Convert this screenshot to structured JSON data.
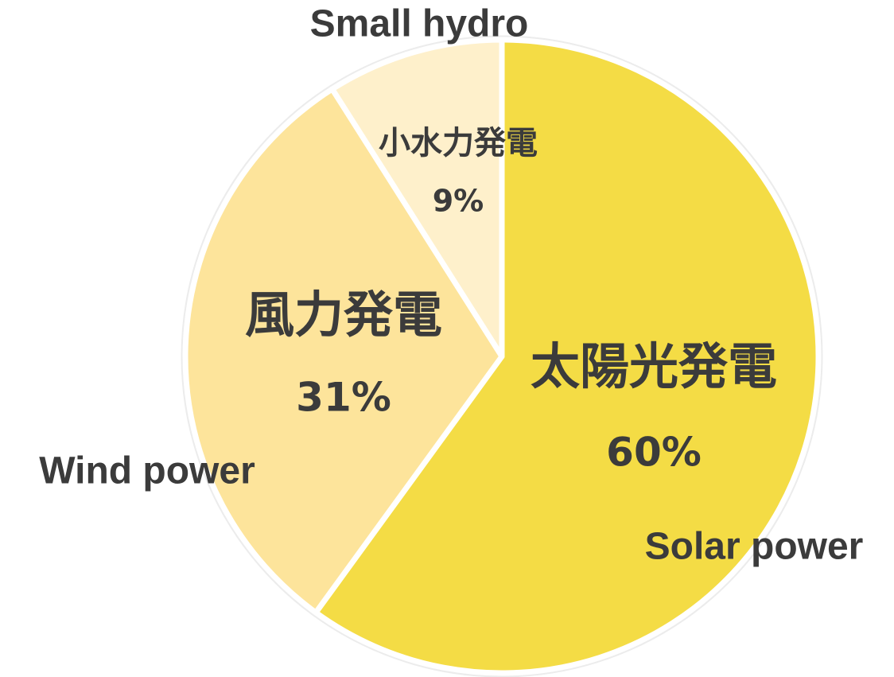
{
  "chart_data": {
    "type": "pie",
    "categories": [
      "太陽光発電",
      "風力発電",
      "小水力発電"
    ],
    "english_labels": [
      "Solar power",
      "Wind power",
      "Small hydro"
    ],
    "values": [
      60,
      31,
      9
    ],
    "value_labels": [
      "60%",
      "31%",
      "9%"
    ],
    "colors": [
      "#f4dc45",
      "#fde49b",
      "#fef0cb"
    ]
  }
}
